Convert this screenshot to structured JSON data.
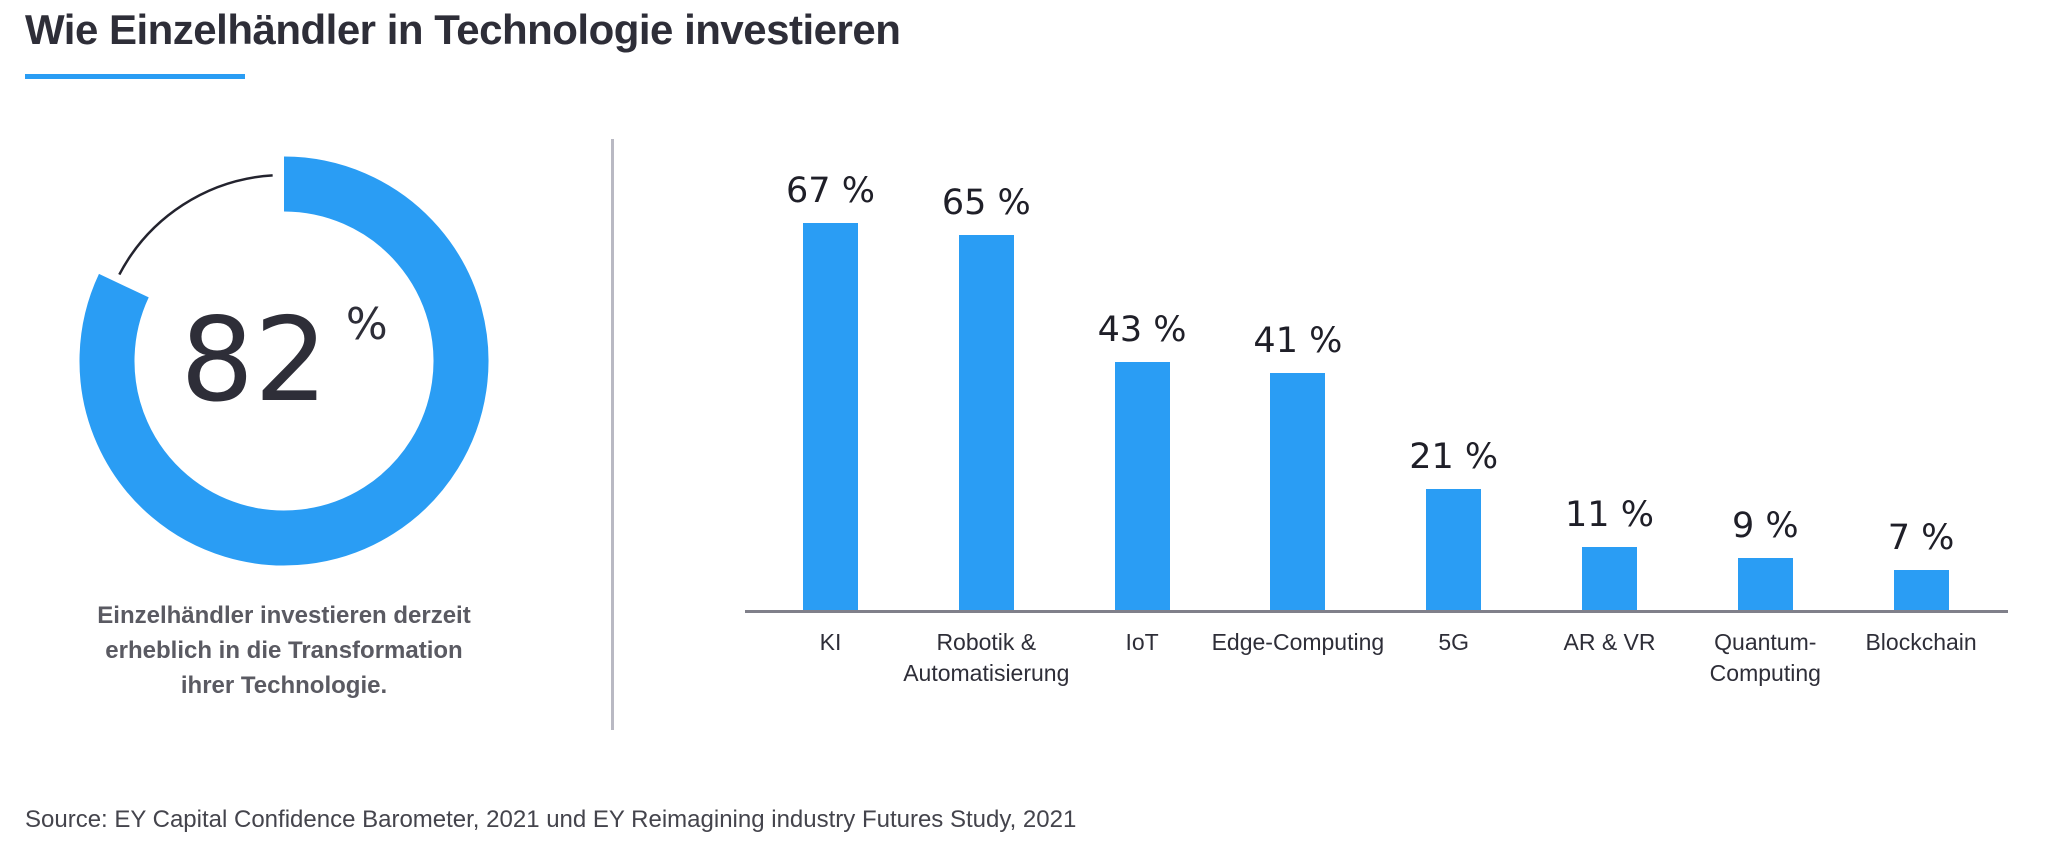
{
  "accent_color": "#2a9df4",
  "remainder_arc_color": "#23232e",
  "axis_color": "#80808a",
  "divider_color": "#b9b9c3",
  "header": {
    "title": "Wie Einzelhändler in Technologie investieren"
  },
  "donut": {
    "value": 82,
    "value_label": "82",
    "unit": "%",
    "caption": "Einzelhändler investieren derzeit\nerheblich in die Transformation\nihrer Technologie."
  },
  "source": {
    "text": "Source: EY Capital Confidence Barometer, 2021 und EY Reimagining industry Futures Study, 2021"
  },
  "chart_data": [
    {
      "type": "pie",
      "subtype": "donut_gauge",
      "value": 82,
      "remainder": 18,
      "center_label": "82",
      "center_unit": "%",
      "caption": "Einzelhändler investieren derzeit erheblich in die Transformation ihrer Technologie."
    },
    {
      "type": "bar",
      "categories": [
        "KI",
        "Robotik & Automatisierung",
        "IoT",
        "Edge-Computing",
        "5G",
        "AR & VR",
        "Quantum-Computing",
        "Blockchain"
      ],
      "display_labels": [
        "KI",
        "Robotik &\nAutomatisierung",
        "IoT",
        "Edge-Computing",
        "5G",
        "AR & VR",
        "Quantum-\nComputing",
        "Blockchain"
      ],
      "values": [
        67,
        65,
        43,
        41,
        21,
        11,
        9,
        7
      ],
      "data_labels": [
        "67 %",
        "65 %",
        "43 %",
        "41 %",
        "21 %",
        "11 %",
        "9 %",
        "7 %"
      ],
      "unit": "%",
      "title": "",
      "xlabel": "",
      "ylabel": "",
      "ylim": [
        0,
        70
      ],
      "grid": false,
      "legend": false
    }
  ]
}
